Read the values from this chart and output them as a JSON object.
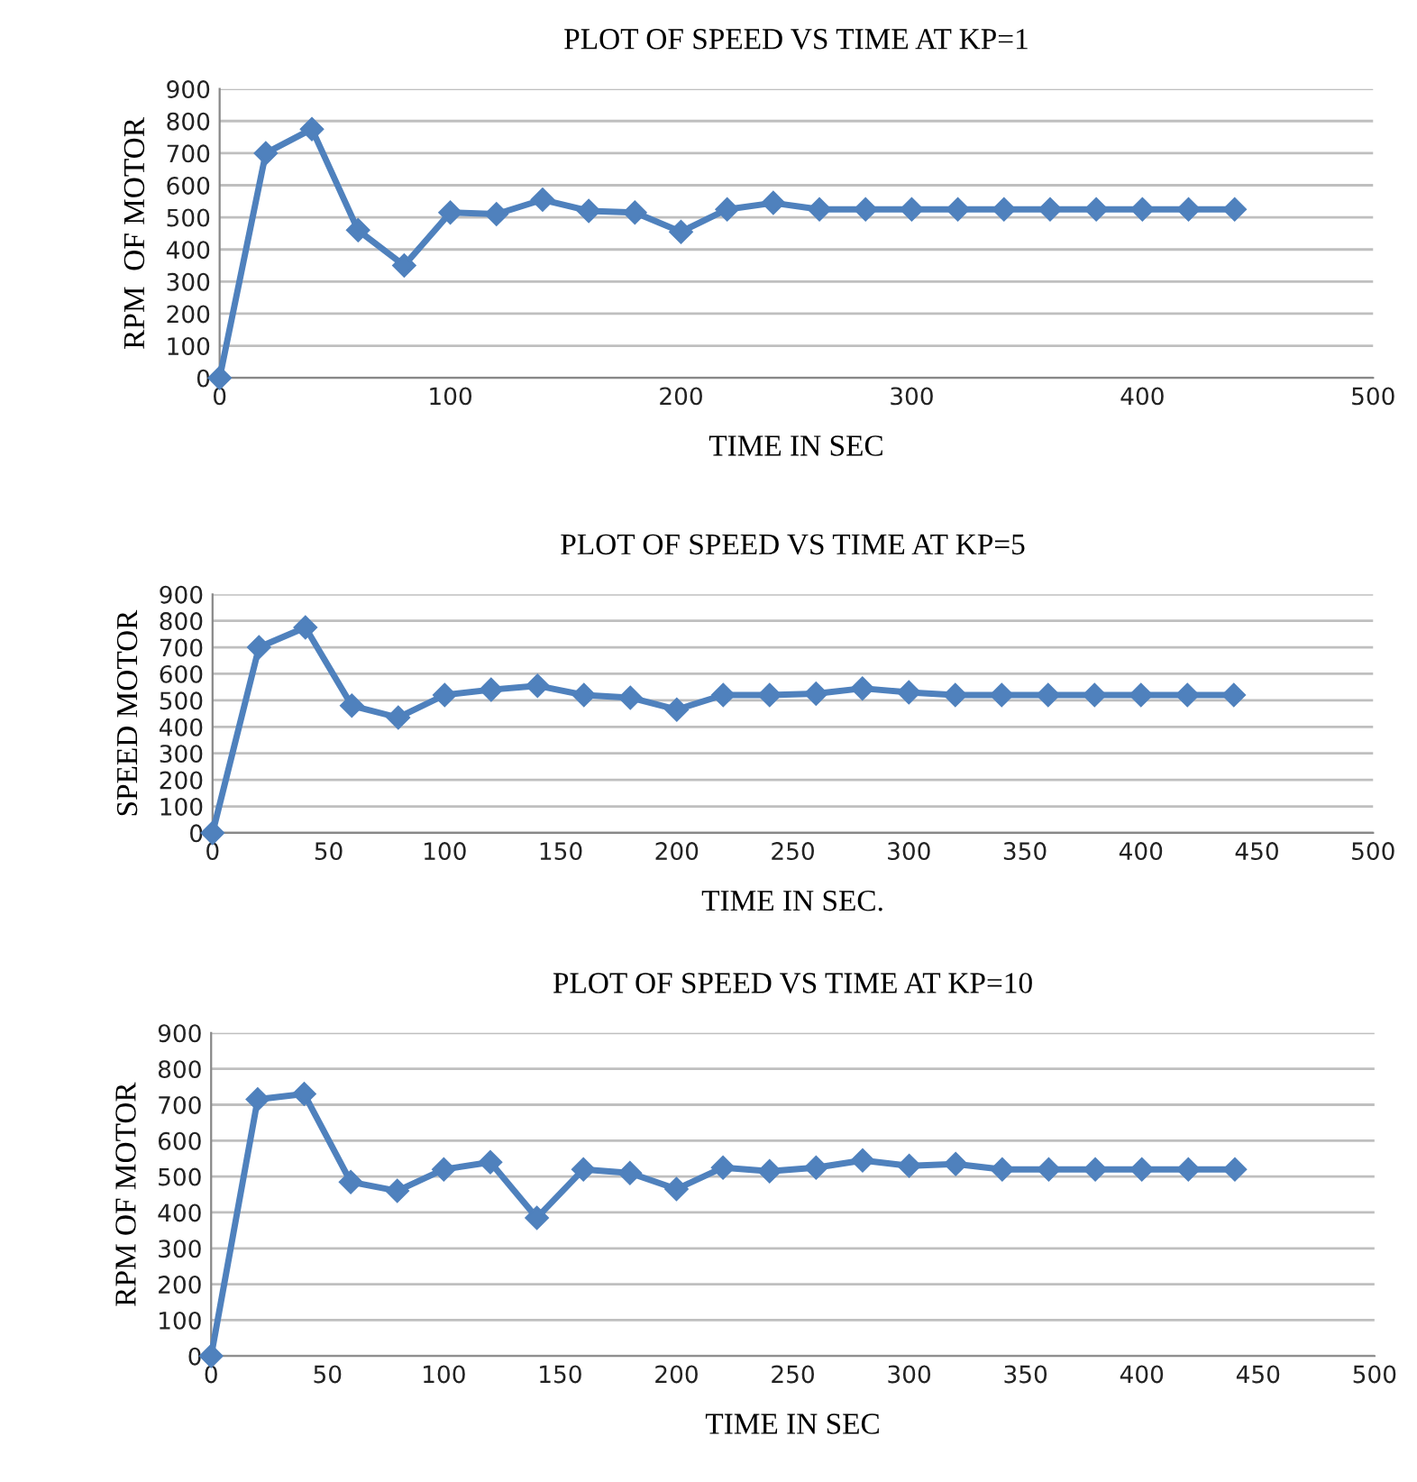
{
  "chart_data": [
    {
      "type": "line",
      "title": "PLOT OF SPEED VS TIME AT KP=1",
      "xlabel": "TIME IN SEC",
      "ylabel": "RPM  OF MOTOR",
      "x": [
        0,
        20,
        40,
        60,
        80,
        100,
        120,
        140,
        160,
        180,
        200,
        220,
        240,
        260,
        280,
        300,
        320,
        340,
        360,
        380,
        400,
        420,
        440
      ],
      "series": [
        {
          "color": "#4f81bd",
          "values": [
            0,
            700,
            775,
            460,
            350,
            515,
            510,
            555,
            520,
            515,
            455,
            525,
            545,
            525,
            525,
            525,
            525,
            525,
            525,
            525,
            525,
            525,
            525
          ]
        }
      ],
      "xlim": [
        0,
        500
      ],
      "xticks": [
        0,
        100,
        200,
        300,
        400,
        500
      ],
      "ylim": [
        0,
        900
      ],
      "yticks": [
        0,
        100,
        200,
        300,
        400,
        500,
        600,
        700,
        800,
        900
      ],
      "grid": "y",
      "marker": "diamond",
      "line_style": "solid"
    },
    {
      "type": "line",
      "title": "PLOT OF SPEED VS TIME AT KP=5",
      "xlabel": "TIME IN SEC.",
      "ylabel": "SPEED MOTOR",
      "x": [
        0,
        20,
        40,
        60,
        80,
        100,
        120,
        140,
        160,
        180,
        200,
        220,
        240,
        260,
        280,
        300,
        320,
        340,
        360,
        380,
        400,
        420,
        440
      ],
      "series": [
        {
          "color": "#4f81bd",
          "values": [
            0,
            700,
            775,
            480,
            435,
            520,
            540,
            555,
            520,
            510,
            465,
            520,
            520,
            525,
            545,
            530,
            520,
            520,
            520,
            520,
            520,
            520,
            520
          ]
        }
      ],
      "xlim": [
        0,
        500
      ],
      "xticks": [
        0,
        50,
        100,
        150,
        200,
        250,
        300,
        350,
        400,
        450,
        500
      ],
      "ylim": [
        0,
        900
      ],
      "yticks": [
        0,
        100,
        200,
        300,
        400,
        500,
        600,
        700,
        800,
        900
      ],
      "grid": "y",
      "marker": "diamond",
      "line_style": "solid"
    },
    {
      "type": "line",
      "title": "PLOT OF SPEED VS TIME AT KP=10",
      "xlabel": "TIME IN SEC",
      "ylabel": "RPM OF MOTOR",
      "x": [
        0,
        20,
        40,
        60,
        80,
        100,
        120,
        140,
        160,
        180,
        200,
        220,
        240,
        260,
        280,
        300,
        320,
        340,
        360,
        380,
        400,
        420,
        440
      ],
      "series": [
        {
          "color": "#4f81bd",
          "values": [
            0,
            715,
            730,
            485,
            460,
            520,
            540,
            385,
            520,
            510,
            465,
            525,
            515,
            525,
            545,
            530,
            535,
            520,
            520,
            520,
            520,
            520,
            520
          ]
        }
      ],
      "xlim": [
        0,
        500
      ],
      "xticks": [
        0,
        50,
        100,
        150,
        200,
        250,
        300,
        350,
        400,
        450,
        500
      ],
      "ylim": [
        0,
        900
      ],
      "yticks": [
        0,
        100,
        200,
        300,
        400,
        500,
        600,
        700,
        800,
        900
      ],
      "grid": "y",
      "marker": "diamond",
      "line_style": "solid"
    }
  ]
}
